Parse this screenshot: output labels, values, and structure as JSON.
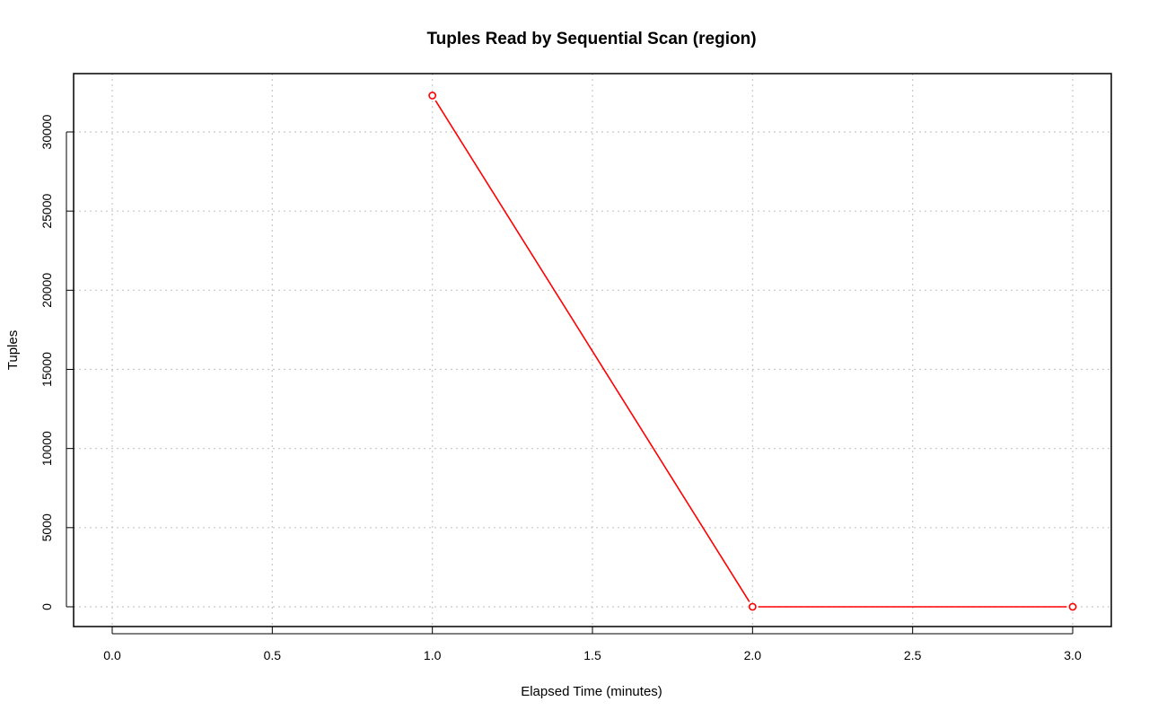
{
  "chart_data": {
    "type": "line",
    "title": "Tuples Read by Sequential Scan (region)",
    "xlabel": "Elapsed Time (minutes)",
    "ylabel": "Tuples",
    "xlim": [
      0,
      3
    ],
    "ylim": [
      0,
      32300
    ],
    "x_ticks": [
      0.0,
      0.5,
      1.0,
      1.5,
      2.0,
      2.5,
      3.0
    ],
    "x_tick_labels": [
      "0.0",
      "0.5",
      "1.0",
      "1.5",
      "2.0",
      "2.5",
      "3.0"
    ],
    "y_ticks": [
      0,
      5000,
      10000,
      15000,
      20000,
      25000,
      30000
    ],
    "y_tick_labels": [
      "0",
      "5000",
      "10000",
      "15000",
      "20000",
      "25000",
      "30000"
    ],
    "grid": true,
    "series": [
      {
        "color": "#ff0000",
        "marker": "open-circle",
        "x": [
          1,
          2,
          3
        ],
        "y": [
          32300,
          0,
          0
        ]
      }
    ]
  }
}
